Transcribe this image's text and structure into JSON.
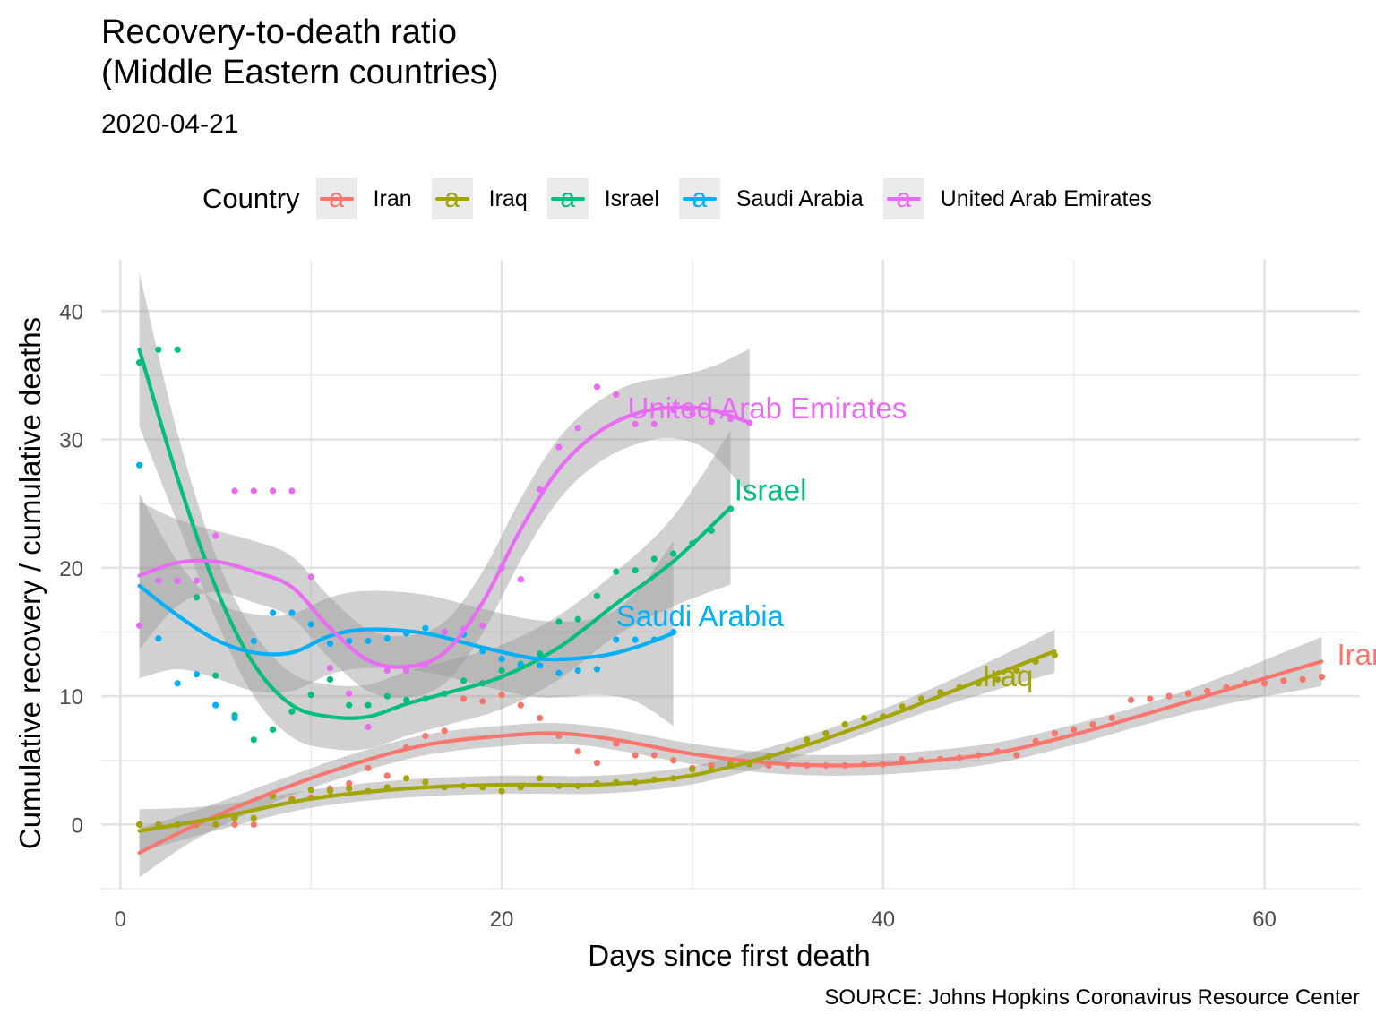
{
  "title": "Recovery-to-death ratio\n(Middle Eastern countries)",
  "title_line1": "Recovery-to-death ratio",
  "title_line2": "(Middle Eastern countries)",
  "subtitle": "2020-04-21",
  "legend": {
    "title": "Country",
    "key_glyph": "a",
    "items": [
      {
        "label": "Iran",
        "color": "#F8766D"
      },
      {
        "label": "Iraq",
        "color": "#A3A500"
      },
      {
        "label": "Israel",
        "color": "#00BF7D"
      },
      {
        "label": "Saudi Arabia",
        "color": "#00B0F6"
      },
      {
        "label": "United Arab Emirates",
        "color": "#E76BF3"
      }
    ]
  },
  "caption": "SOURCE: Johns Hopkins Coronavirus Resource Center",
  "chart_data": {
    "type": "scatter",
    "xlabel": "Days since first death",
    "ylabel": "Cumulative recovery / cumulative deaths",
    "xlim": [
      -1,
      65
    ],
    "ylim": [
      -5,
      44
    ],
    "x_ticks": [
      0,
      20,
      40,
      60
    ],
    "y_ticks": [
      0,
      10,
      20,
      30,
      40
    ],
    "grid": true,
    "legend_position": "top",
    "smoothing": "loess with confidence band",
    "series": [
      {
        "name": "Iran",
        "color": "#F8766D",
        "label_xy": [
          63.8,
          13.3
        ],
        "points": [
          [
            1,
            0
          ],
          [
            2,
            0
          ],
          [
            3,
            0
          ],
          [
            4,
            0
          ],
          [
            5,
            0
          ],
          [
            6,
            0
          ],
          [
            7,
            0
          ],
          [
            8,
            2.3
          ],
          [
            9,
            2
          ],
          [
            10,
            2.1
          ],
          [
            11,
            2.8
          ],
          [
            12,
            3.2
          ],
          [
            13,
            4.4
          ],
          [
            14,
            3.8
          ],
          [
            15,
            6
          ],
          [
            16,
            6.9
          ],
          [
            17,
            7.3
          ],
          [
            18,
            9.8
          ],
          [
            19,
            9.6
          ],
          [
            20,
            10.1
          ],
          [
            21,
            9.3
          ],
          [
            22,
            8.3
          ],
          [
            23,
            6.9
          ],
          [
            24,
            5.7
          ],
          [
            25,
            4.8
          ],
          [
            26,
            6.3
          ],
          [
            27,
            5.4
          ],
          [
            28,
            5.4
          ],
          [
            29,
            5
          ],
          [
            30,
            4.4
          ],
          [
            31,
            4.6
          ],
          [
            32,
            4.8
          ],
          [
            33,
            4.8
          ],
          [
            34,
            4.6
          ],
          [
            35,
            4.6
          ],
          [
            36,
            4.6
          ],
          [
            37,
            4.6
          ],
          [
            38,
            4.6
          ],
          [
            39,
            4.7
          ],
          [
            40,
            4.7
          ],
          [
            41,
            5.1
          ],
          [
            42,
            5
          ],
          [
            43,
            5.1
          ],
          [
            44,
            5.2
          ],
          [
            45,
            5.4
          ],
          [
            46,
            5.7
          ],
          [
            47,
            5.4
          ],
          [
            48,
            6.5
          ],
          [
            49,
            7.1
          ],
          [
            50,
            7.4
          ],
          [
            51,
            7.8
          ],
          [
            52,
            8.3
          ],
          [
            53,
            9.7
          ],
          [
            54,
            9.8
          ],
          [
            55,
            10
          ],
          [
            56,
            10.2
          ],
          [
            57,
            10.4
          ],
          [
            58,
            10.7
          ],
          [
            59,
            11
          ],
          [
            60,
            11
          ],
          [
            61,
            11.2
          ],
          [
            62,
            11.3
          ],
          [
            63,
            11.5
          ]
        ],
        "smooth": [
          [
            1,
            -2.2
          ],
          [
            4,
            0
          ],
          [
            8,
            2.5
          ],
          [
            12,
            4.6
          ],
          [
            16,
            6.2
          ],
          [
            20,
            6.9
          ],
          [
            23,
            7.1
          ],
          [
            26,
            6.6
          ],
          [
            30,
            5.5
          ],
          [
            34,
            4.8
          ],
          [
            38,
            4.6
          ],
          [
            42,
            4.9
          ],
          [
            46,
            5.6
          ],
          [
            50,
            7
          ],
          [
            54,
            8.7
          ],
          [
            58,
            10.5
          ],
          [
            63,
            12.7
          ]
        ],
        "band": 0.8
      },
      {
        "name": "Iraq",
        "color": "#A3A500",
        "label_xy": [
          45.2,
          11.6
        ],
        "points": [
          [
            1,
            0
          ],
          [
            2,
            0
          ],
          [
            3,
            0
          ],
          [
            4,
            0
          ],
          [
            5,
            0
          ],
          [
            6,
            0.5
          ],
          [
            7,
            0.5
          ],
          [
            8,
            2.2
          ],
          [
            9,
            1.9
          ],
          [
            10,
            2.7
          ],
          [
            11,
            2.6
          ],
          [
            12,
            2.8
          ],
          [
            13,
            2.6
          ],
          [
            14,
            2.9
          ],
          [
            15,
            3.6
          ],
          [
            16,
            3.3
          ],
          [
            17,
            2.9
          ],
          [
            18,
            3
          ],
          [
            19,
            2.9
          ],
          [
            20,
            2.6
          ],
          [
            21,
            2.9
          ],
          [
            22,
            3.6
          ],
          [
            23,
            3
          ],
          [
            24,
            3
          ],
          [
            25,
            3.2
          ],
          [
            26,
            3.3
          ],
          [
            27,
            3.3
          ],
          [
            28,
            3.5
          ],
          [
            29,
            3.6
          ],
          [
            30,
            4.3
          ],
          [
            31,
            4.3
          ],
          [
            32,
            4.7
          ],
          [
            33,
            4.7
          ],
          [
            34,
            5.3
          ],
          [
            35,
            5.8
          ],
          [
            36,
            6.6
          ],
          [
            37,
            7.1
          ],
          [
            38,
            7.8
          ],
          [
            39,
            8.3
          ],
          [
            40,
            8.4
          ],
          [
            41,
            9.2
          ],
          [
            42,
            9.8
          ],
          [
            43,
            10.3
          ],
          [
            44,
            10.7
          ],
          [
            45,
            11
          ],
          [
            46,
            11.3
          ],
          [
            47,
            12
          ],
          [
            48,
            12.7
          ],
          [
            49,
            13.2
          ]
        ],
        "smooth": [
          [
            1,
            -0.5
          ],
          [
            5,
            0.5
          ],
          [
            10,
            2
          ],
          [
            15,
            2.8
          ],
          [
            20,
            3.1
          ],
          [
            25,
            3.1
          ],
          [
            29,
            3.6
          ],
          [
            32,
            4.5
          ],
          [
            36,
            6.2
          ],
          [
            40,
            8.3
          ],
          [
            44,
            10.6
          ],
          [
            49,
            13.5
          ]
        ],
        "band": 0.7
      },
      {
        "name": "Israel",
        "color": "#00BF7D",
        "label_xy": [
          32.2,
          26.1
        ],
        "points": [
          [
            1,
            36
          ],
          [
            2,
            37
          ],
          [
            3,
            37
          ],
          [
            4,
            17.7
          ],
          [
            5,
            11.6
          ],
          [
            6,
            8.5
          ],
          [
            7,
            6.6
          ],
          [
            8,
            7.4
          ],
          [
            9,
            8.8
          ],
          [
            10,
            10.1
          ],
          [
            11,
            11.3
          ],
          [
            12,
            9.3
          ],
          [
            13,
            9.3
          ],
          [
            14,
            10
          ],
          [
            15,
            9.7
          ],
          [
            16,
            9.8
          ],
          [
            17,
            10.2
          ],
          [
            18,
            11.2
          ],
          [
            19,
            11
          ],
          [
            20,
            12
          ],
          [
            21,
            12.5
          ],
          [
            22,
            13.3
          ],
          [
            23,
            15.8
          ],
          [
            24,
            16
          ],
          [
            25,
            17.8
          ],
          [
            26,
            19.7
          ],
          [
            27,
            19.8
          ],
          [
            28,
            20.7
          ],
          [
            29,
            21.1
          ],
          [
            30,
            21.9
          ],
          [
            31,
            22.9
          ],
          [
            32,
            24.6
          ]
        ],
        "smooth": [
          [
            1,
            37
          ],
          [
            3,
            27
          ],
          [
            5,
            18.5
          ],
          [
            7,
            12.5
          ],
          [
            9,
            9.3
          ],
          [
            11,
            8.4
          ],
          [
            13,
            8.4
          ],
          [
            15,
            9.4
          ],
          [
            17,
            10.2
          ],
          [
            20,
            11.5
          ],
          [
            23,
            13.8
          ],
          [
            26,
            17.2
          ],
          [
            29,
            20.5
          ],
          [
            32,
            24.7
          ]
        ],
        "band": 2.5
      },
      {
        "name": "Saudi Arabia",
        "color": "#00B0F6",
        "label_xy": [
          26,
          16.3
        ],
        "points": [
          [
            1,
            28
          ],
          [
            2,
            14.5
          ],
          [
            3,
            11
          ],
          [
            4,
            11.7
          ],
          [
            5,
            9.3
          ],
          [
            6,
            8.3
          ],
          [
            7,
            14.3
          ],
          [
            8,
            16.5
          ],
          [
            9,
            16.5
          ],
          [
            10,
            15.6
          ],
          [
            11,
            14.1
          ],
          [
            12,
            14.3
          ],
          [
            13,
            14.3
          ],
          [
            14,
            14.5
          ],
          [
            15,
            14.9
          ],
          [
            16,
            15.3
          ],
          [
            17,
            15
          ],
          [
            18,
            14.8
          ],
          [
            19,
            13.5
          ],
          [
            20,
            12.9
          ],
          [
            21,
            12.4
          ],
          [
            22,
            12.4
          ],
          [
            23,
            11.8
          ],
          [
            24,
            12
          ],
          [
            25,
            12.1
          ],
          [
            26,
            14.4
          ],
          [
            27,
            14.4
          ],
          [
            28,
            14.4
          ],
          [
            29,
            15
          ]
        ],
        "smooth": [
          [
            1,
            18.6
          ],
          [
            3,
            16.3
          ],
          [
            5,
            14.4
          ],
          [
            7,
            13.4
          ],
          [
            9,
            13.4
          ],
          [
            11,
            14.7
          ],
          [
            13,
            15.2
          ],
          [
            16,
            14.9
          ],
          [
            19,
            13.8
          ],
          [
            22,
            12.9
          ],
          [
            25,
            13.1
          ],
          [
            27,
            13.8
          ],
          [
            29,
            14.9
          ]
        ],
        "band": 3.0
      },
      {
        "name": "United Arab Emirates",
        "color": "#E76BF3",
        "label_xy": [
          26.6,
          32.5
        ],
        "points": [
          [
            1,
            15.5
          ],
          [
            2,
            19
          ],
          [
            3,
            19
          ],
          [
            4,
            19
          ],
          [
            5,
            22.5
          ],
          [
            6,
            26
          ],
          [
            7,
            26
          ],
          [
            8,
            26
          ],
          [
            9,
            26
          ],
          [
            10,
            19.3
          ],
          [
            11,
            12.2
          ],
          [
            12,
            10.2
          ],
          [
            13,
            7.6
          ],
          [
            14,
            12
          ],
          [
            15,
            12
          ],
          [
            16,
            12.5
          ],
          [
            17,
            15
          ],
          [
            18,
            15.2
          ],
          [
            19,
            15.5
          ],
          [
            20,
            20
          ],
          [
            21,
            19.1
          ],
          [
            22,
            26.1
          ],
          [
            23,
            29.4
          ],
          [
            24,
            30.9
          ],
          [
            25,
            34.1
          ],
          [
            26,
            33.5
          ],
          [
            27,
            31.2
          ],
          [
            28,
            31.2
          ],
          [
            29,
            32.3
          ],
          [
            30,
            32
          ],
          [
            31,
            31.4
          ],
          [
            32,
            31.6
          ],
          [
            33,
            31.3
          ]
        ],
        "smooth": [
          [
            1,
            19.4
          ],
          [
            3,
            20.4
          ],
          [
            5,
            20.5
          ],
          [
            7,
            19.7
          ],
          [
            9,
            18.5
          ],
          [
            11,
            15.3
          ],
          [
            13,
            12.8
          ],
          [
            15,
            12.3
          ],
          [
            17,
            13.4
          ],
          [
            19,
            17.3
          ],
          [
            21,
            23
          ],
          [
            23,
            27.7
          ],
          [
            25,
            30.5
          ],
          [
            27,
            32
          ],
          [
            29,
            32.5
          ],
          [
            31,
            32.3
          ],
          [
            33,
            31.3
          ]
        ],
        "band": 2.4
      }
    ]
  }
}
